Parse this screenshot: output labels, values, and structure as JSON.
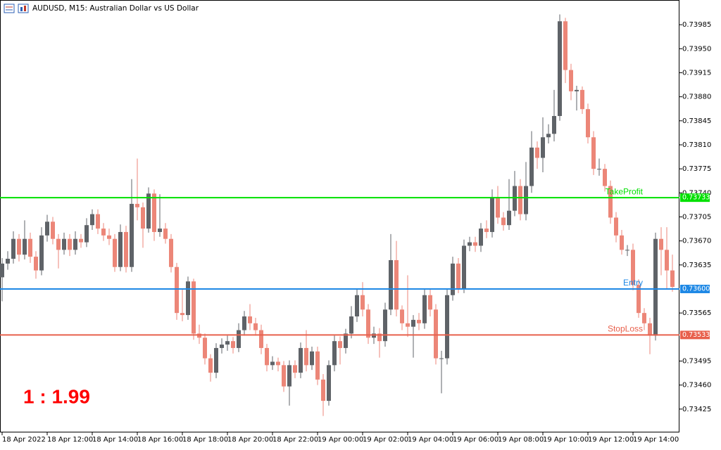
{
  "chart_data": {
    "type": "candlestick",
    "title": "AUDUSD, M15:  Australian Dollar vs US Dollar",
    "annotation": "1 : 1.99",
    "up_color": "#5f6368",
    "down_color": "#ec8678",
    "categories": [
      "18 Apr 2022",
      null,
      null,
      null,
      null,
      null,
      null,
      null,
      "18 Apr 12:00",
      null,
      null,
      null,
      null,
      null,
      null,
      null,
      "18 Apr 14:00",
      null,
      null,
      null,
      null,
      null,
      null,
      null,
      "18 Apr 16:00",
      null,
      null,
      null,
      null,
      null,
      null,
      null,
      "18 Apr 18:00",
      null,
      null,
      null,
      null,
      null,
      null,
      null,
      "18 Apr 20:00",
      null,
      null,
      null,
      null,
      null,
      null,
      null,
      "18 Apr 22:00",
      null,
      null,
      null,
      null,
      null,
      null,
      null,
      "19 Apr 00:00",
      null,
      null,
      null,
      null,
      null,
      null,
      null,
      "19 Apr 02:00",
      null,
      null,
      null,
      null,
      null,
      null,
      null,
      "19 Apr 04:00",
      null,
      null,
      null,
      null,
      null,
      null,
      null,
      "19 Apr 06:00",
      null,
      null,
      null,
      null,
      null,
      null,
      null,
      "19 Apr 08:00",
      null,
      null,
      null,
      null,
      null,
      null,
      null,
      "19 Apr 10:00",
      null,
      null,
      null,
      null,
      null,
      null,
      null,
      "19 Apr 12:00",
      null,
      null,
      null,
      null,
      null,
      null,
      null,
      "19 Apr 14:00",
      null,
      null,
      null,
      null,
      null,
      null,
      null
    ],
    "open": [
      0.73617,
      0.73637,
      0.73644,
      0.73673,
      0.7365,
      0.73673,
      0.73647,
      0.73627,
      0.73678,
      0.73698,
      0.73673,
      0.73657,
      0.73673,
      0.73657,
      0.73673,
      0.73668,
      0.73693,
      0.73709,
      0.73688,
      0.73678,
      0.73673,
      0.73632,
      0.73683,
      0.73632,
      0.73724,
      0.73719,
      0.73688,
      0.73739,
      0.73683,
      0.73688,
      0.73673,
      0.73632,
      0.73565,
      0.73562,
      0.73611,
      0.73535,
      0.73529,
      0.73499,
      0.73478,
      0.73514,
      0.73519,
      0.73524,
      0.73514,
      0.7354,
      0.7356,
      0.7355,
      0.7354,
      0.73514,
      0.73489,
      0.73494,
      0.73489,
      0.73458,
      0.73489,
      0.73478,
      0.73514,
      0.73489,
      0.73509,
      0.73468,
      0.73437,
      0.73489,
      0.73524,
      0.73514,
      0.73535,
      0.7356,
      0.73591,
      0.7357,
      0.73529,
      0.73535,
      0.73524,
      0.7357,
      0.73642,
      0.7357,
      0.7355,
      0.73545,
      0.73555,
      0.7355,
      0.73591,
      0.7357,
      0.73499,
      0.73499,
      0.73591,
      0.73637,
      0.73601,
      0.73663,
      0.73668,
      0.73663,
      0.73688,
      0.73683,
      0.73734,
      0.73704,
      0.73693,
      0.73714,
      0.7375,
      0.73709,
      0.7375,
      0.73806,
      0.73791,
      0.73821,
      0.73826,
      0.73852,
      0.7399,
      0.73919,
      0.73888,
      0.7389,
      0.73862,
      0.73821,
      0.73775,
      0.73775,
      0.7375,
      0.73704,
      0.73678,
      0.73657,
      0.73657,
      0.73606,
      0.73565,
      0.7355,
      0.73532,
      0.73673,
      0.73657,
      0.73627
    ],
    "high": [
      0.73645,
      0.73655,
      0.73684,
      0.7368,
      0.737,
      0.73682,
      0.73655,
      0.7369,
      0.73708,
      0.73705,
      0.7368,
      0.73682,
      0.7368,
      0.73684,
      0.7368,
      0.73703,
      0.73716,
      0.73716,
      0.73696,
      0.73688,
      0.7368,
      0.73694,
      0.73692,
      0.7376,
      0.7379,
      0.73726,
      0.73748,
      0.73745,
      0.73738,
      0.73696,
      0.7368,
      0.73638,
      0.736,
      0.73618,
      0.73615,
      0.73548,
      0.73535,
      0.73505,
      0.73521,
      0.73528,
      0.73532,
      0.7353,
      0.7355,
      0.73568,
      0.73578,
      0.73558,
      0.73548,
      0.7352,
      0.73502,
      0.735,
      0.73495,
      0.73496,
      0.73496,
      0.73522,
      0.7354,
      0.73516,
      0.73516,
      0.73476,
      0.73496,
      0.73532,
      0.73531,
      0.73542,
      0.73575,
      0.736,
      0.7361,
      0.73578,
      0.73545,
      0.73543,
      0.7358,
      0.7368,
      0.7367,
      0.73576,
      0.7362,
      0.73562,
      0.73565,
      0.736,
      0.736,
      0.73578,
      0.7351,
      0.736,
      0.73647,
      0.73645,
      0.73672,
      0.73676,
      0.73676,
      0.73696,
      0.737,
      0.73745,
      0.7375,
      0.73712,
      0.7376,
      0.73772,
      0.7376,
      0.73785,
      0.7383,
      0.73815,
      0.7385,
      0.7384,
      0.7389,
      0.74,
      0.73995,
      0.73928,
      0.73896,
      0.73895,
      0.7387,
      0.7383,
      0.7379,
      0.73782,
      0.73758,
      0.73712,
      0.73686,
      0.73664,
      0.73666,
      0.73614,
      0.73572,
      0.73558,
      0.73682,
      0.7369,
      0.7369,
      0.7365
    ],
    "low": [
      0.73582,
      0.73628,
      0.73637,
      0.7364,
      0.73643,
      0.73638,
      0.73615,
      0.7362,
      0.73669,
      0.73665,
      0.7363,
      0.7365,
      0.73648,
      0.7365,
      0.7366,
      0.73661,
      0.73686,
      0.7368,
      0.7367,
      0.73664,
      0.73625,
      0.73626,
      0.73624,
      0.73625,
      0.737,
      0.7366,
      0.73682,
      0.7367,
      0.73676,
      0.73666,
      0.73624,
      0.73555,
      0.73553,
      0.73555,
      0.73526,
      0.7352,
      0.7349,
      0.73465,
      0.7347,
      0.73506,
      0.7351,
      0.73506,
      0.73508,
      0.73532,
      0.7354,
      0.73532,
      0.73505,
      0.7348,
      0.73482,
      0.7348,
      0.7345,
      0.7343,
      0.7347,
      0.7347,
      0.7348,
      0.73482,
      0.7346,
      0.73415,
      0.7343,
      0.7348,
      0.7349,
      0.73506,
      0.73528,
      0.73552,
      0.7356,
      0.7352,
      0.7352,
      0.735,
      0.73516,
      0.73562,
      0.7356,
      0.7354,
      0.7353,
      0.735,
      0.7354,
      0.73542,
      0.7356,
      0.7349,
      0.73448,
      0.7349,
      0.73583,
      0.73594,
      0.73594,
      0.73655,
      0.73654,
      0.73654,
      0.73674,
      0.73675,
      0.73695,
      0.73685,
      0.73686,
      0.73706,
      0.737,
      0.737,
      0.7374,
      0.73775,
      0.7377,
      0.73812,
      0.73815,
      0.73845,
      0.739,
      0.73875,
      0.7386,
      0.73855,
      0.73812,
      0.73766,
      0.73765,
      0.73742,
      0.73695,
      0.73668,
      0.7365,
      0.73648,
      0.73598,
      0.73558,
      0.7354,
      0.73505,
      0.73525,
      0.7362,
      0.736,
      0.73596
    ],
    "close": [
      0.73637,
      0.73644,
      0.73673,
      0.7365,
      0.73673,
      0.73647,
      0.73627,
      0.73678,
      0.73698,
      0.73673,
      0.73657,
      0.73673,
      0.73657,
      0.73673,
      0.73668,
      0.73693,
      0.73709,
      0.73688,
      0.73678,
      0.73673,
      0.73632,
      0.73683,
      0.73632,
      0.73724,
      0.73719,
      0.73688,
      0.73739,
      0.73683,
      0.73688,
      0.73673,
      0.73632,
      0.73565,
      0.73562,
      0.73611,
      0.73535,
      0.73529,
      0.73499,
      0.73478,
      0.73514,
      0.73519,
      0.73524,
      0.73514,
      0.7354,
      0.7356,
      0.7355,
      0.7354,
      0.73514,
      0.73489,
      0.73494,
      0.73489,
      0.73458,
      0.73489,
      0.73478,
      0.73514,
      0.73489,
      0.73509,
      0.73468,
      0.73437,
      0.73489,
      0.73524,
      0.73514,
      0.73535,
      0.7356,
      0.73591,
      0.7357,
      0.73529,
      0.73535,
      0.73524,
      0.7357,
      0.73642,
      0.7357,
      0.7355,
      0.73545,
      0.73555,
      0.7355,
      0.73591,
      0.7357,
      0.73499,
      0.73499,
      0.73591,
      0.73637,
      0.73601,
      0.73663,
      0.73668,
      0.73663,
      0.73688,
      0.73683,
      0.73734,
      0.73704,
      0.73693,
      0.73714,
      0.7375,
      0.73709,
      0.7375,
      0.73806,
      0.73791,
      0.73821,
      0.73826,
      0.73852,
      0.7399,
      0.73919,
      0.73888,
      0.7389,
      0.73862,
      0.73821,
      0.73775,
      0.73775,
      0.7375,
      0.73704,
      0.73678,
      0.73657,
      0.73657,
      0.73606,
      0.73565,
      0.7355,
      0.73532,
      0.73673,
      0.73657,
      0.73627,
      0.73603
    ],
    "ylim": [
      0.73391,
      0.74021
    ],
    "yticks": [
      0.73985,
      {
        "value": 0.7395,
        "label": "0.73950"
      },
      0.73915,
      {
        "value": 0.7388,
        "label": "0.73880"
      },
      0.73845,
      {
        "value": 0.7381,
        "label": "0.73810"
      },
      0.73775,
      {
        "value": 0.7374,
        "label": "0.73740"
      },
      0.73705,
      {
        "value": 0.7367,
        "label": "0.73670"
      },
      0.73635,
      0.73565,
      0.73495,
      {
        "value": 0.7346,
        "label": "0.73460"
      },
      0.73425
    ],
    "levels": [
      {
        "name": "TakeProfit",
        "value": 0.73733,
        "color": "#00e000"
      },
      {
        "name": "Entry",
        "value": 0.736,
        "value_label": "0.73600",
        "color": "#1e88e5"
      },
      {
        "name": "StopLoss",
        "value": 0.73533,
        "color": "#e8604c"
      }
    ]
  }
}
